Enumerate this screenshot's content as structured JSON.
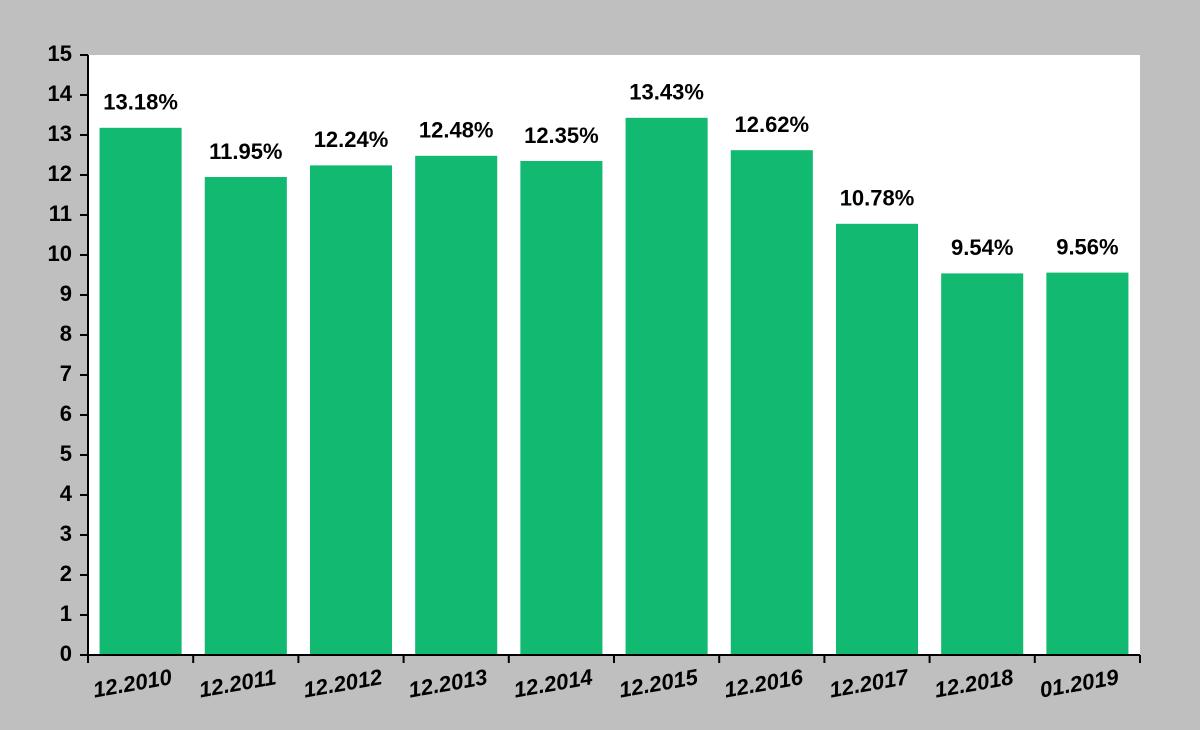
{
  "chart_data": {
    "type": "bar",
    "categories": [
      "12.2010",
      "12.2011",
      "12.2012",
      "12.2013",
      "12.2014",
      "12.2015",
      "12.2016",
      "12.2017",
      "12.2018",
      "01.2019"
    ],
    "values": [
      13.18,
      11.95,
      12.24,
      12.48,
      12.35,
      13.43,
      12.62,
      10.78,
      9.54,
      9.56
    ],
    "value_labels": [
      "13.18%",
      "11.95%",
      "12.24%",
      "12.48%",
      "12.35%",
      "13.43%",
      "12.62%",
      "10.78%",
      "9.54%",
      "9.56%"
    ],
    "color": "#12b970",
    "ylim": [
      0,
      15
    ],
    "yticks": [
      0,
      1,
      2,
      3,
      4,
      5,
      6,
      7,
      8,
      9,
      10,
      11,
      12,
      13,
      14,
      15
    ],
    "grid": false
  }
}
